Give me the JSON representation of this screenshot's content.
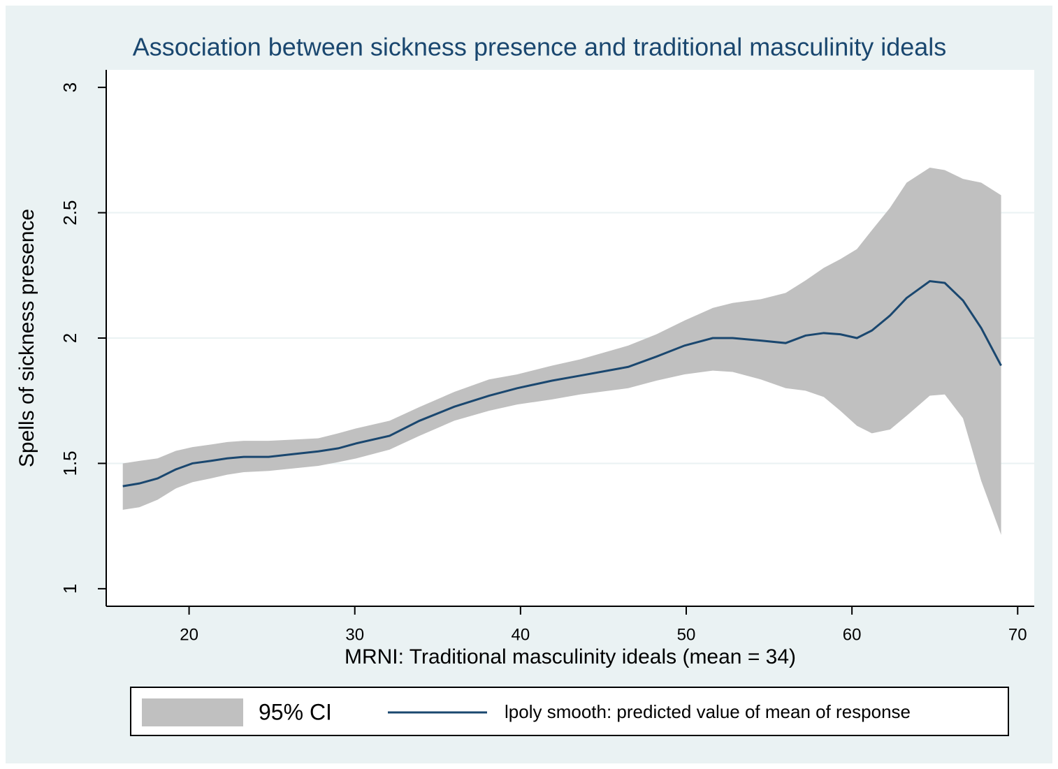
{
  "chart_data": {
    "type": "line",
    "title": "Association between sickness presence and traditional masculinity ideals",
    "x_label": "MRNI: Traditional masculinity ideals (mean = 34)",
    "y_label": "Spells of sickness presence",
    "x": [
      16,
      17,
      18.1,
      19.2,
      20.2,
      21.3,
      22.3,
      23.3,
      24.8,
      26.3,
      27.8,
      29,
      30.1,
      32.1,
      33.9,
      36,
      38.1,
      39.8,
      41.9,
      43.6,
      46.5,
      48.2,
      49.9,
      51.6,
      52.8,
      54.5,
      56,
      57.2,
      58.3,
      59.3,
      60.3,
      61.2,
      62.3,
      63.3,
      64.7,
      65.6,
      66.7,
      67.8,
      69
    ],
    "series": [
      {
        "name": "95% CI",
        "color": "#c0c0c0",
        "kind": "band",
        "upper": [
          1.5,
          1.51,
          1.52,
          1.55,
          1.565,
          1.575,
          1.585,
          1.59,
          1.59,
          1.595,
          1.6,
          1.62,
          1.64,
          1.67,
          1.725,
          1.785,
          1.835,
          1.855,
          1.89,
          1.915,
          1.97,
          2.015,
          2.07,
          2.12,
          2.14,
          2.155,
          2.18,
          2.23,
          2.28,
          2.315,
          2.355,
          2.43,
          2.52,
          2.62,
          2.68,
          2.67,
          2.635,
          2.62,
          2.57
        ],
        "lower": [
          1.315,
          1.325,
          1.355,
          1.4,
          1.425,
          1.44,
          1.455,
          1.465,
          1.47,
          1.48,
          1.49,
          1.505,
          1.52,
          1.555,
          1.61,
          1.67,
          1.71,
          1.735,
          1.755,
          1.775,
          1.8,
          1.83,
          1.855,
          1.87,
          1.865,
          1.835,
          1.8,
          1.79,
          1.765,
          1.71,
          1.65,
          1.62,
          1.635,
          1.69,
          1.77,
          1.775,
          1.68,
          1.43,
          1.215
        ]
      },
      {
        "name": "lpoly smooth: predicted value of mean of response",
        "color": "#1a476f",
        "kind": "line",
        "values": [
          1.409,
          1.42,
          1.44,
          1.476,
          1.5,
          1.51,
          1.52,
          1.526,
          1.526,
          1.537,
          1.548,
          1.56,
          1.58,
          1.61,
          1.67,
          1.726,
          1.77,
          1.8,
          1.83,
          1.85,
          1.885,
          1.926,
          1.97,
          2.0,
          2.0,
          1.99,
          1.98,
          2.01,
          2.02,
          2.015,
          2.0,
          2.03,
          2.09,
          2.16,
          2.227,
          2.22,
          2.15,
          2.04,
          1.89
        ]
      }
    ],
    "xlim": [
      15,
      71
    ],
    "xticks": [
      20,
      30,
      40,
      50,
      60,
      70
    ],
    "ylim": [
      0.93,
      3.07
    ],
    "yticks": [
      1,
      1.5,
      2,
      2.5,
      3
    ],
    "grid": true,
    "legend": "bottom"
  }
}
